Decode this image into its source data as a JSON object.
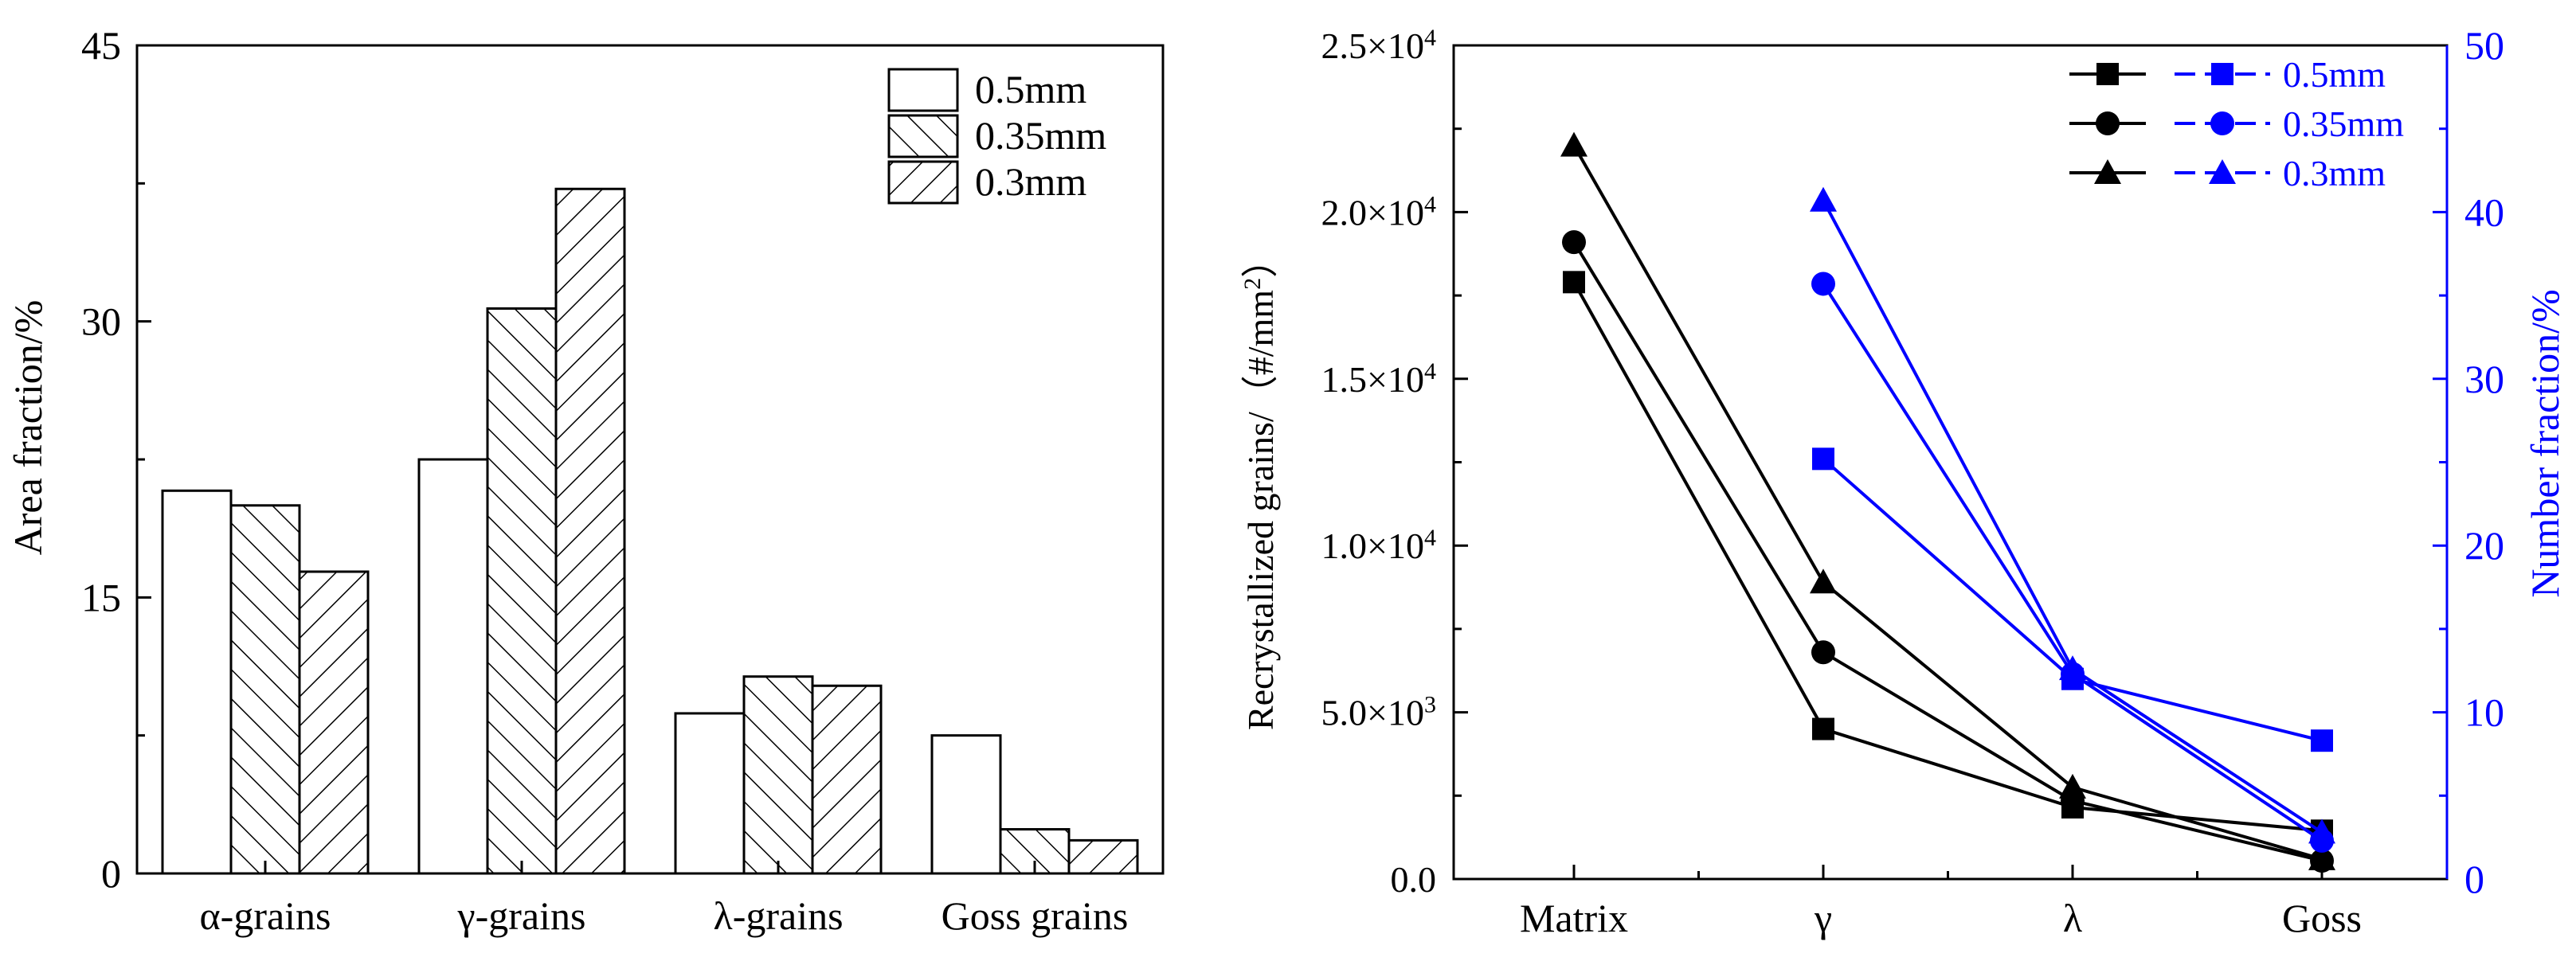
{
  "chart_data": [
    {
      "type": "bar",
      "title": "",
      "xlabel": "",
      "ylabel": "Area fraction/%",
      "ylim": [
        0,
        45
      ],
      "yticks": [
        "0",
        "15",
        "30",
        "45"
      ],
      "categories": [
        "α-grains",
        "γ-grains",
        "λ-grains",
        "Goss grains"
      ],
      "series": [
        {
          "name": "0.5mm",
          "pattern": "none",
          "values": [
            20.8,
            22.5,
            8.7,
            7.5
          ]
        },
        {
          "name": "0.35mm",
          "pattern": "forward-hatch",
          "values": [
            20.0,
            30.7,
            10.7,
            2.4
          ]
        },
        {
          "name": "0.3mm",
          "pattern": "back-hatch",
          "values": [
            16.4,
            37.2,
            10.2,
            1.8
          ]
        }
      ],
      "legend": {
        "placement": "top-right"
      },
      "grid": false
    },
    {
      "type": "line",
      "title": "",
      "xlabel": "",
      "categories": [
        "Matrix",
        "γ",
        "λ",
        "Goss"
      ],
      "left_axis": {
        "label_text": "Recrystallized grains/（#/mm",
        "label_sup": "2",
        "label_close": "）",
        "color": "#000000",
        "range": [
          0,
          25000
        ],
        "tick_values": [
          0,
          5000,
          10000,
          15000,
          20000,
          25000
        ],
        "ticks": [
          {
            "mant": "0.0",
            "exp": ""
          },
          {
            "mant": "5.0×10",
            "exp": "3"
          },
          {
            "mant": "1.0×10",
            "exp": "4"
          },
          {
            "mant": "1.5×10",
            "exp": "4"
          },
          {
            "mant": "2.0×10",
            "exp": "4"
          },
          {
            "mant": "2.5×10",
            "exp": "4"
          }
        ]
      },
      "right_axis": {
        "label": "Number fraction/%",
        "color": "#0000ff",
        "range": [
          0,
          50
        ],
        "ticks": [
          "0",
          "10",
          "20",
          "30",
          "40",
          "50"
        ]
      },
      "series": [
        {
          "name": "0.5mm",
          "axis": "left",
          "color": "#000000",
          "marker": "square",
          "values": [
            17900,
            4500,
            2150,
            1450
          ]
        },
        {
          "name": "0.35mm",
          "axis": "left",
          "color": "#000000",
          "marker": "circle",
          "values": [
            19100,
            6800,
            2350,
            550
          ]
        },
        {
          "name": "0.3mm",
          "axis": "left",
          "color": "#000000",
          "marker": "triangle",
          "values": [
            22000,
            8900,
            2750,
            600
          ]
        },
        {
          "name": "0.5mm",
          "axis": "right",
          "color": "#0000ff",
          "marker": "square",
          "values": [
            null,
            25.2,
            12.0,
            8.3
          ]
        },
        {
          "name": "0.35mm",
          "axis": "right",
          "color": "#0000ff",
          "marker": "circle",
          "values": [
            null,
            35.7,
            12.3,
            2.3
          ]
        },
        {
          "name": "0.3mm",
          "axis": "right",
          "color": "#0000ff",
          "marker": "triangle",
          "values": [
            null,
            40.7,
            12.6,
            2.8
          ]
        }
      ],
      "legend": {
        "placement": "top-right",
        "labels": [
          "0.5mm",
          "0.35mm",
          "0.3mm"
        ]
      },
      "grid": false
    }
  ]
}
